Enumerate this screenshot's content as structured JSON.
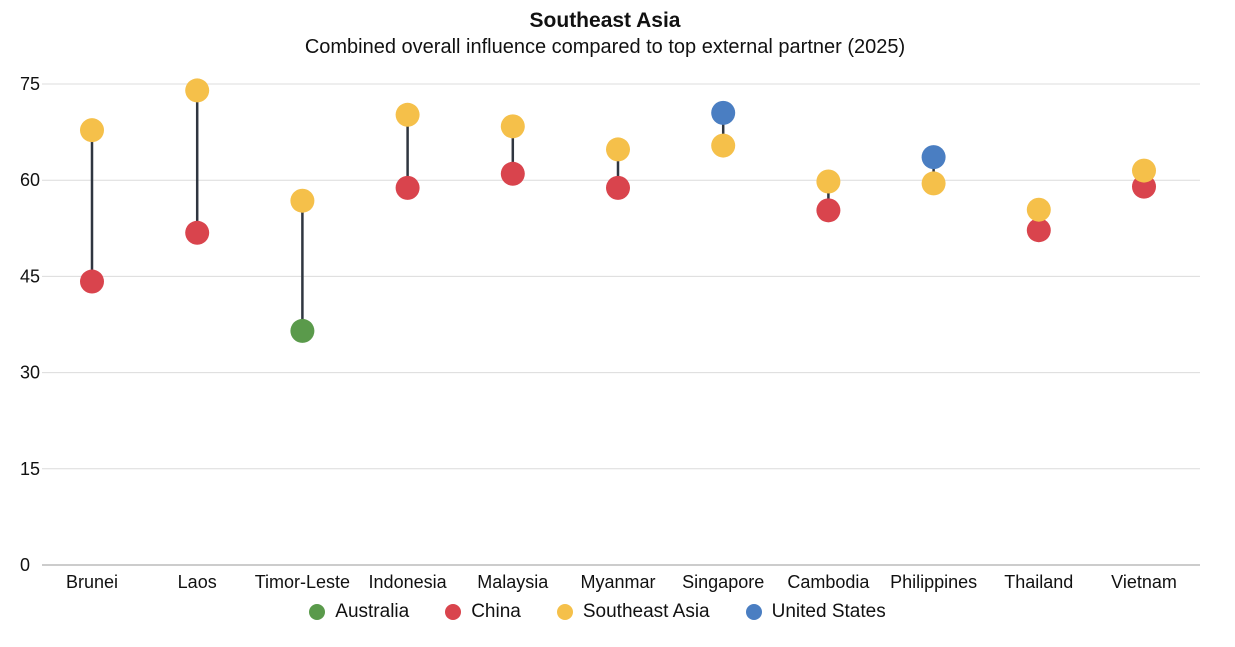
{
  "chart_data": {
    "type": "scatter",
    "title": "Southeast Asia",
    "subtitle": "Combined overall influence compared to top external partner (2025)",
    "xlabel": "",
    "ylabel": "",
    "ylim": [
      0,
      75
    ],
    "yticks": [
      0,
      15,
      30,
      45,
      60,
      75
    ],
    "grid": true,
    "legend_position": "bottom",
    "categories": [
      "Brunei",
      "Laos",
      "Timor-Leste",
      "Indonesia",
      "Malaysia",
      "Myanmar",
      "Singapore",
      "Cambodia",
      "Philippines",
      "Thailand",
      "Vietnam"
    ],
    "series": [
      {
        "name": "Australia",
        "color": "#5a9a4b",
        "values": [
          null,
          null,
          36.5,
          null,
          null,
          null,
          null,
          null,
          null,
          null,
          null
        ]
      },
      {
        "name": "China",
        "color": "#d9444d",
        "values": [
          44.2,
          51.8,
          null,
          58.8,
          61.0,
          58.8,
          null,
          55.3,
          null,
          52.2,
          59.0
        ]
      },
      {
        "name": "Southeast Asia",
        "color": "#f5c04a",
        "values": [
          67.8,
          74.0,
          56.8,
          70.2,
          68.4,
          64.8,
          65.4,
          59.8,
          59.5,
          55.4,
          61.5
        ]
      },
      {
        "name": "United States",
        "color": "#4a7ec2",
        "values": [
          null,
          null,
          null,
          null,
          null,
          null,
          70.5,
          null,
          63.6,
          null,
          null
        ]
      }
    ],
    "connector_color": "#2f3640"
  }
}
